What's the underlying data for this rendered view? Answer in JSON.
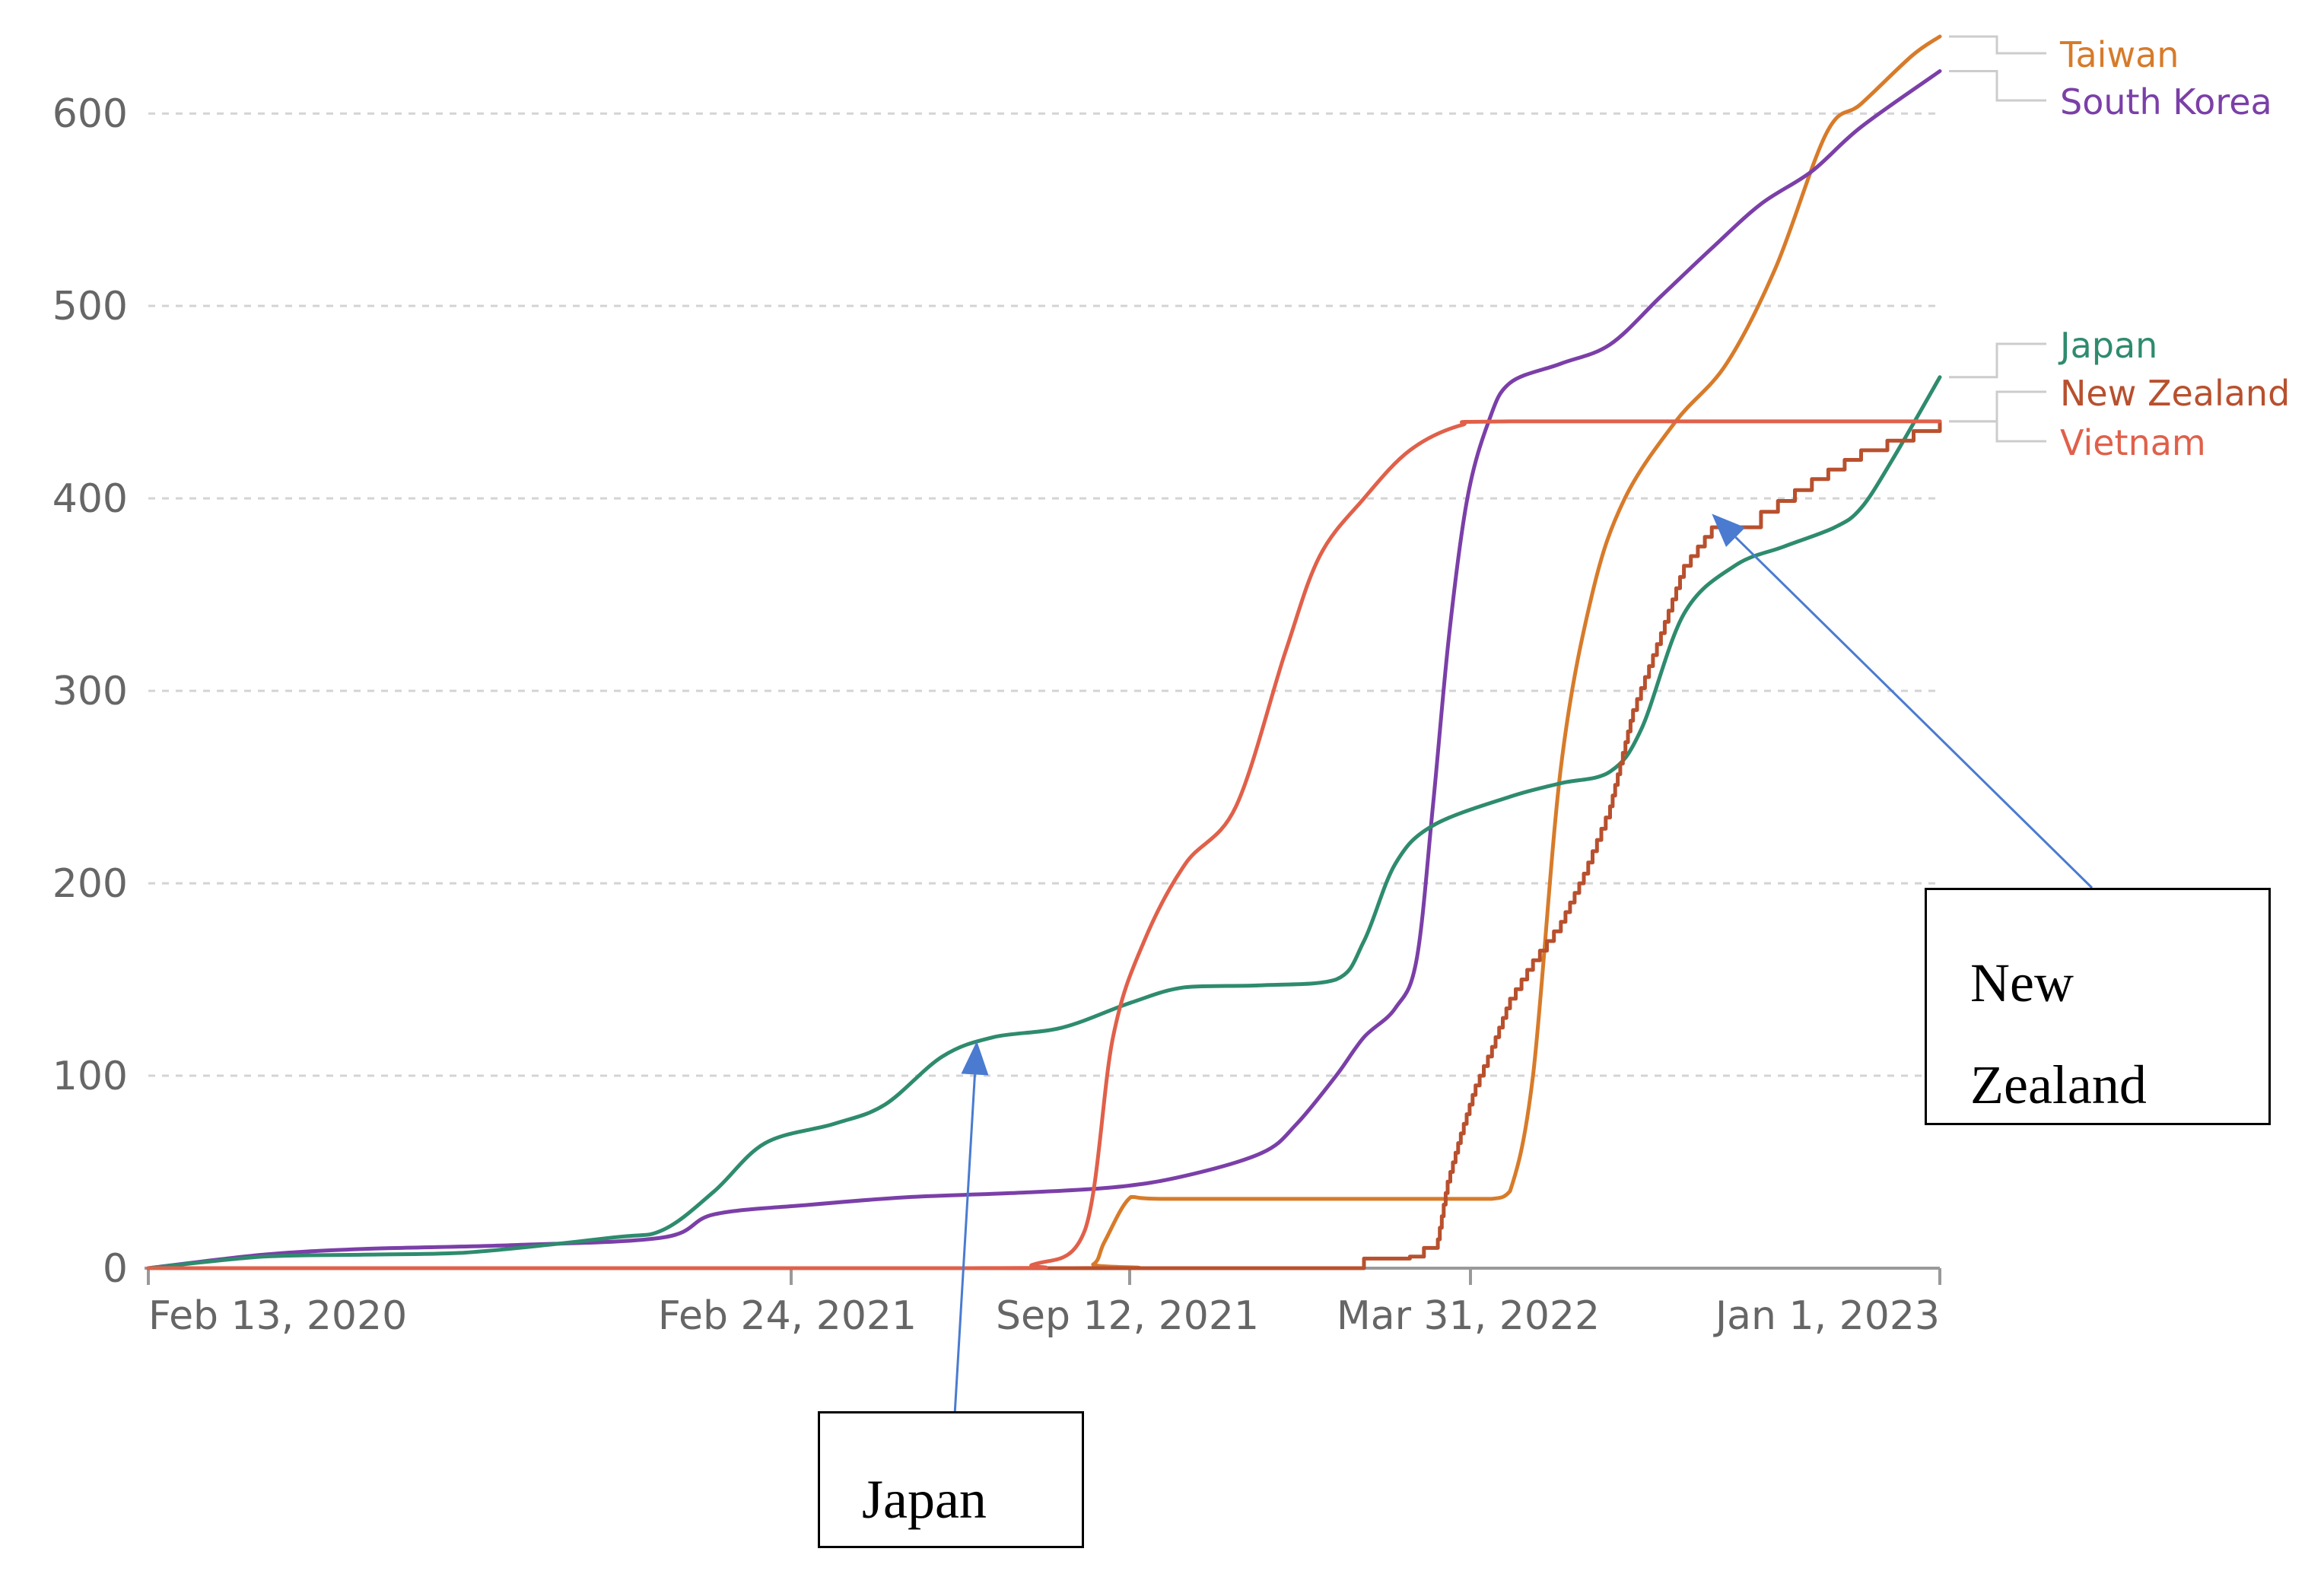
{
  "chart_data": {
    "type": "line",
    "title": "",
    "xlabel": "",
    "ylabel": "",
    "x_tick_labels": [
      "Feb 13, 2020",
      "Feb 24, 2021",
      "Sep 12, 2021",
      "Mar 31, 2022",
      "Jan 1, 2023"
    ],
    "y_ticks": [
      0,
      100,
      200,
      300,
      400,
      500,
      600
    ],
    "ylim": [
      0,
      640
    ],
    "xlim": [
      "2020-01-22",
      "2023-01-18"
    ],
    "grid": true,
    "legend": "right-end line labels",
    "series": [
      {
        "name": "Taiwan",
        "color": "#d77b2a",
        "step": false,
        "points": [
          [
            "2020-01-22",
            0
          ],
          [
            "2021-08-01",
            0
          ],
          [
            "2021-08-20",
            2
          ],
          [
            "2021-08-27",
            14
          ],
          [
            "2021-09-12",
            37
          ],
          [
            "2021-10-01",
            36
          ],
          [
            "2022-01-01",
            36
          ],
          [
            "2022-04-01",
            36
          ],
          [
            "2022-04-20",
            36
          ],
          [
            "2022-05-01",
            40
          ],
          [
            "2022-05-15",
            100
          ],
          [
            "2022-06-01",
            260
          ],
          [
            "2022-06-20",
            350
          ],
          [
            "2022-07-10",
            400
          ],
          [
            "2022-08-10",
            440
          ],
          [
            "2022-09-10",
            470
          ],
          [
            "2022-10-10",
            520
          ],
          [
            "2022-11-10",
            590
          ],
          [
            "2022-12-01",
            605
          ],
          [
            "2023-01-01",
            630
          ],
          [
            "2023-01-18",
            640
          ]
        ]
      },
      {
        "name": "South Korea",
        "color": "#7b3fa8",
        "step": false,
        "points": [
          [
            "2020-01-22",
            0
          ],
          [
            "2020-04-01",
            7
          ],
          [
            "2020-06-01",
            10
          ],
          [
            "2020-09-01",
            12
          ],
          [
            "2020-12-01",
            16
          ],
          [
            "2021-01-01",
            28
          ],
          [
            "2021-03-01",
            33
          ],
          [
            "2021-05-01",
            37
          ],
          [
            "2021-07-01",
            39
          ],
          [
            "2021-09-01",
            42
          ],
          [
            "2021-10-15",
            48
          ],
          [
            "2021-12-01",
            60
          ],
          [
            "2021-12-22",
            75
          ],
          [
            "2022-01-15",
            100
          ],
          [
            "2022-02-01",
            120
          ],
          [
            "2022-02-20",
            135
          ],
          [
            "2022-03-05",
            160
          ],
          [
            "2022-03-15",
            240
          ],
          [
            "2022-03-25",
            330
          ],
          [
            "2022-04-05",
            400
          ],
          [
            "2022-04-18",
            440
          ],
          [
            "2022-05-01",
            460
          ],
          [
            "2022-06-01",
            470
          ],
          [
            "2022-07-01",
            480
          ],
          [
            "2022-08-01",
            505
          ],
          [
            "2022-09-01",
            530
          ],
          [
            "2022-10-01",
            553
          ],
          [
            "2022-11-01",
            570
          ],
          [
            "2022-12-01",
            593
          ],
          [
            "2023-01-18",
            622
          ]
        ]
      },
      {
        "name": "Japan",
        "color": "#2e8b6e",
        "step": false,
        "points": [
          [
            "2020-01-22",
            0
          ],
          [
            "2020-04-01",
            6
          ],
          [
            "2020-06-01",
            7
          ],
          [
            "2020-08-01",
            8
          ],
          [
            "2020-11-01",
            16
          ],
          [
            "2020-12-01",
            20
          ],
          [
            "2021-01-01",
            40
          ],
          [
            "2021-02-01",
            65
          ],
          [
            "2021-03-15",
            75
          ],
          [
            "2021-04-15",
            85
          ],
          [
            "2021-05-20",
            110
          ],
          [
            "2021-06-20",
            120
          ],
          [
            "2021-08-01",
            125
          ],
          [
            "2021-09-12",
            138
          ],
          [
            "2021-10-15",
            146
          ],
          [
            "2021-12-01",
            147
          ],
          [
            "2022-01-15",
            150
          ],
          [
            "2022-02-01",
            170
          ],
          [
            "2022-02-20",
            210
          ],
          [
            "2022-03-15",
            230
          ],
          [
            "2022-05-01",
            245
          ],
          [
            "2022-06-01",
            252
          ],
          [
            "2022-07-01",
            258
          ],
          [
            "2022-07-20",
            280
          ],
          [
            "2022-08-15",
            340
          ],
          [
            "2022-09-15",
            365
          ],
          [
            "2022-10-15",
            375
          ],
          [
            "2022-11-15",
            385
          ],
          [
            "2022-12-01",
            395
          ],
          [
            "2022-12-20",
            420
          ],
          [
            "2023-01-18",
            463
          ]
        ]
      },
      {
        "name": "New Zealand",
        "color": "#b8502e",
        "step": true,
        "points": [
          [
            "2020-01-22",
            0
          ],
          [
            "2021-06-01",
            0
          ],
          [
            "2022-01-01",
            0
          ],
          [
            "2022-02-01",
            5
          ],
          [
            "2022-03-01",
            6
          ],
          [
            "2022-03-18",
            15
          ],
          [
            "2022-03-24",
            45
          ],
          [
            "2022-04-01",
            70
          ],
          [
            "2022-04-10",
            95
          ],
          [
            "2022-04-20",
            115
          ],
          [
            "2022-05-01",
            140
          ],
          [
            "2022-05-15",
            160
          ],
          [
            "2022-06-01",
            180
          ],
          [
            "2022-06-15",
            205
          ],
          [
            "2022-07-01",
            240
          ],
          [
            "2022-07-15",
            290
          ],
          [
            "2022-08-01",
            330
          ],
          [
            "2022-08-15",
            365
          ],
          [
            "2022-09-01",
            385
          ],
          [
            "2022-10-01",
            393
          ],
          [
            "2022-11-01",
            410
          ],
          [
            "2022-12-01",
            425
          ],
          [
            "2023-01-18",
            440
          ]
        ]
      },
      {
        "name": "Vietnam",
        "color": "#e0604a",
        "step": false,
        "points": [
          [
            "2020-01-22",
            0
          ],
          [
            "2021-06-01",
            0
          ],
          [
            "2021-07-15",
            2
          ],
          [
            "2021-08-15",
            20
          ],
          [
            "2021-09-01",
            120
          ],
          [
            "2021-09-20",
            170
          ],
          [
            "2021-10-15",
            210
          ],
          [
            "2021-11-15",
            240
          ],
          [
            "2021-12-15",
            320
          ],
          [
            "2022-01-05",
            370
          ],
          [
            "2022-02-01",
            400
          ],
          [
            "2022-03-01",
            425
          ],
          [
            "2022-04-01",
            438
          ],
          [
            "2022-05-01",
            440
          ],
          [
            "2023-01-18",
            440
          ]
        ]
      }
    ]
  },
  "annotations": [
    {
      "lines": [
        "Japan"
      ],
      "arrow_to": [
        "2021-06-10",
        118
      ]
    },
    {
      "lines": [
        "New",
        "Zealand"
      ],
      "arrow_to": [
        "2022-09-01",
        392
      ]
    }
  ]
}
